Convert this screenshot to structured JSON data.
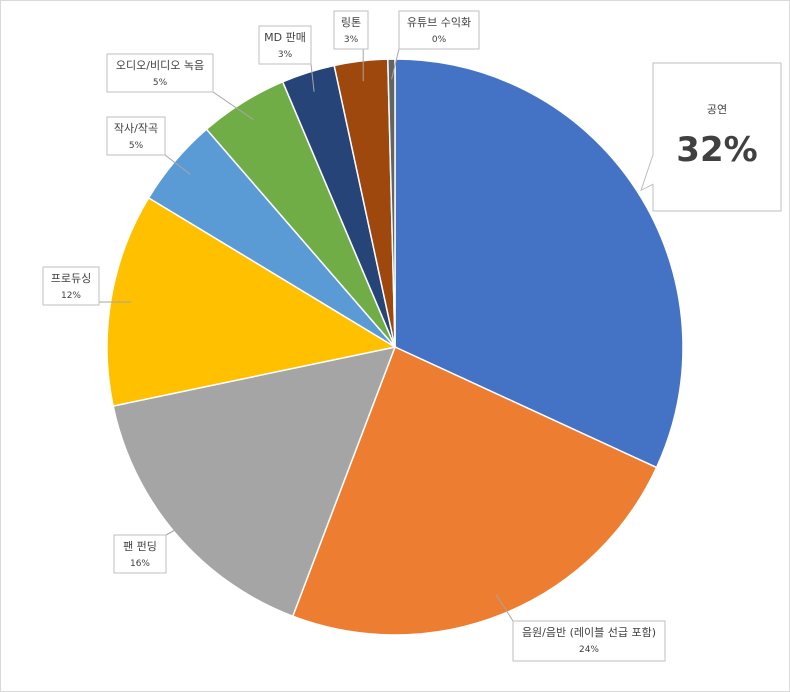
{
  "chart_data": {
    "type": "pie",
    "start_angle_deg": 90,
    "direction": "clockwise",
    "slices": [
      {
        "name": "공연",
        "value": 32,
        "label": "32%",
        "color": "#4472C4",
        "emphasis": true
      },
      {
        "name": "음원/음반 (레이블 선급 포함)",
        "value": 24,
        "label": "24%",
        "color": "#ED7D31"
      },
      {
        "name": "팬 펀딩",
        "value": 16,
        "label": "16%",
        "color": "#A5A5A5"
      },
      {
        "name": "프로듀싱",
        "value": 12,
        "label": "12%",
        "color": "#FFC000"
      },
      {
        "name": "작사/작곡",
        "value": 5,
        "label": "5%",
        "color": "#5B9BD5"
      },
      {
        "name": "오디오/비디오 녹음",
        "value": 5,
        "label": "5%",
        "color": "#70AD47"
      },
      {
        "name": "MD 판매",
        "value": 3,
        "label": "3%",
        "color": "#264478"
      },
      {
        "name": "링톤",
        "value": 3,
        "label": "3%",
        "color": "#9E480E"
      },
      {
        "name": "유튜브 수익화",
        "value": 0.4,
        "label": "0%",
        "color": "#636363"
      }
    ]
  }
}
